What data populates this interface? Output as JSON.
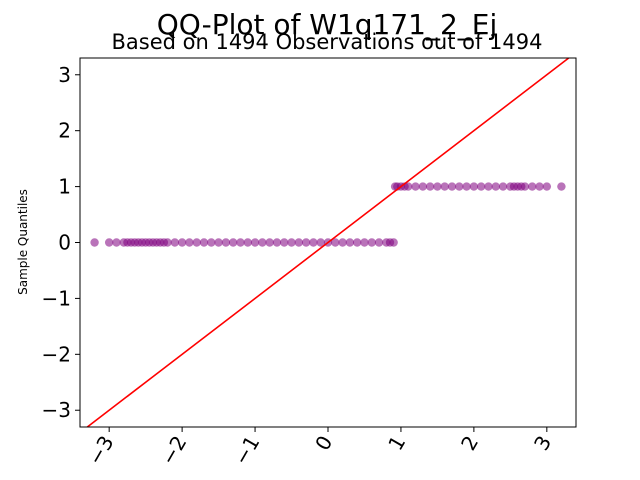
{
  "chart_data": {
    "type": "scatter",
    "title": "QQ-Plot of W1q171_2_Ej",
    "subtitle": "Based on 1494 Observations out of 1494",
    "xlabel": "",
    "ylabel": "Sample Quantiles",
    "xlim": [
      -3.4,
      3.4
    ],
    "ylim": [
      -3.3,
      3.3
    ],
    "xticks": [
      -3,
      -2,
      -1,
      0,
      1,
      2,
      3
    ],
    "xtick_labels": [
      "−3",
      "−2",
      "−1",
      "0",
      "1",
      "2",
      "3"
    ],
    "yticks": [
      -3,
      -2,
      -1,
      0,
      1,
      2,
      3
    ],
    "ytick_labels": [
      "−3",
      "−2",
      "−1",
      "0",
      "1",
      "2",
      "3"
    ],
    "grid": false,
    "legend": "none",
    "reference_line": {
      "color": "#ff0000",
      "slope": 1,
      "intercept": 0
    },
    "marker_color": "#800080",
    "series": [
      {
        "points": [
          [
            -3.2,
            0
          ],
          [
            -3.0,
            0
          ],
          [
            -2.9,
            0
          ],
          [
            -2.8,
            0
          ],
          [
            -2.75,
            0
          ],
          [
            -2.7,
            0
          ],
          [
            -2.65,
            0
          ],
          [
            -2.6,
            0
          ],
          [
            -2.55,
            0
          ],
          [
            -2.5,
            0
          ],
          [
            -2.45,
            0
          ],
          [
            -2.4,
            0
          ],
          [
            -2.35,
            0
          ],
          [
            -2.3,
            0
          ],
          [
            -2.25,
            0
          ],
          [
            -2.2,
            0
          ],
          [
            -2.1,
            0
          ],
          [
            -2.0,
            0
          ],
          [
            -1.9,
            0
          ],
          [
            -1.8,
            0
          ],
          [
            -1.7,
            0
          ],
          [
            -1.6,
            0
          ],
          [
            -1.5,
            0
          ],
          [
            -1.4,
            0
          ],
          [
            -1.3,
            0
          ],
          [
            -1.2,
            0
          ],
          [
            -1.1,
            0
          ],
          [
            -1.0,
            0
          ],
          [
            -0.9,
            0
          ],
          [
            -0.8,
            0
          ],
          [
            -0.7,
            0
          ],
          [
            -0.6,
            0
          ],
          [
            -0.5,
            0
          ],
          [
            -0.4,
            0
          ],
          [
            -0.3,
            0
          ],
          [
            -0.2,
            0
          ],
          [
            -0.1,
            0
          ],
          [
            0.0,
            0
          ],
          [
            0.1,
            0
          ],
          [
            0.2,
            0
          ],
          [
            0.3,
            0
          ],
          [
            0.4,
            0
          ],
          [
            0.5,
            0
          ],
          [
            0.6,
            0
          ],
          [
            0.7,
            0
          ],
          [
            0.8,
            0
          ],
          [
            0.85,
            0
          ],
          [
            0.9,
            0
          ],
          [
            0.92,
            1
          ],
          [
            0.95,
            1
          ],
          [
            1.0,
            1
          ],
          [
            1.05,
            1
          ],
          [
            1.1,
            1
          ],
          [
            1.2,
            1
          ],
          [
            1.3,
            1
          ],
          [
            1.4,
            1
          ],
          [
            1.5,
            1
          ],
          [
            1.6,
            1
          ],
          [
            1.7,
            1
          ],
          [
            1.8,
            1
          ],
          [
            1.9,
            1
          ],
          [
            2.0,
            1
          ],
          [
            2.1,
            1
          ],
          [
            2.2,
            1
          ],
          [
            2.3,
            1
          ],
          [
            2.4,
            1
          ],
          [
            2.5,
            1
          ],
          [
            2.55,
            1
          ],
          [
            2.6,
            1
          ],
          [
            2.65,
            1
          ],
          [
            2.7,
            1
          ],
          [
            2.8,
            1
          ],
          [
            2.9,
            1
          ],
          [
            3.0,
            1
          ],
          [
            3.2,
            1
          ]
        ]
      }
    ]
  }
}
